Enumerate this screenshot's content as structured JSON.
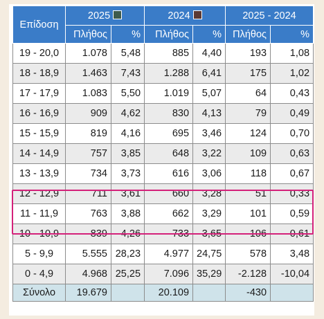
{
  "header": {
    "grade_label": "Επίδοση",
    "year_a": "2025",
    "year_b": "2024",
    "diff_label": "2025 - 2024",
    "count_label": "Πλήθος",
    "pct_label": "%",
    "year_a_color": "#3e5b4c",
    "year_b_color": "#5a3a34"
  },
  "rows": [
    {
      "range": "19 - 20,0",
      "a_count": "1.078",
      "a_pct": "5,48",
      "b_count": "885",
      "b_pct": "4,40",
      "d_count": "193",
      "d_pct": "1,08"
    },
    {
      "range": "18 - 18,9",
      "a_count": "1.463",
      "a_pct": "7,43",
      "b_count": "1.288",
      "b_pct": "6,41",
      "d_count": "175",
      "d_pct": "1,02"
    },
    {
      "range": "17 - 17,9",
      "a_count": "1.083",
      "a_pct": "5,50",
      "b_count": "1.019",
      "b_pct": "5,07",
      "d_count": "64",
      "d_pct": "0,43"
    },
    {
      "range": "16 - 16,9",
      "a_count": "909",
      "a_pct": "4,62",
      "b_count": "830",
      "b_pct": "4,13",
      "d_count": "79",
      "d_pct": "0,49"
    },
    {
      "range": "15 - 15,9",
      "a_count": "819",
      "a_pct": "4,16",
      "b_count": "695",
      "b_pct": "3,46",
      "d_count": "124",
      "d_pct": "0,70"
    },
    {
      "range": "14 - 14,9",
      "a_count": "757",
      "a_pct": "3,85",
      "b_count": "648",
      "b_pct": "3,22",
      "d_count": "109",
      "d_pct": "0,63"
    },
    {
      "range": "13 - 13,9",
      "a_count": "734",
      "a_pct": "3,73",
      "b_count": "616",
      "b_pct": "3,06",
      "d_count": "118",
      "d_pct": "0,67"
    },
    {
      "range": "12 - 12,9",
      "a_count": "711",
      "a_pct": "3,61",
      "b_count": "660",
      "b_pct": "3,28",
      "d_count": "51",
      "d_pct": "0,33"
    },
    {
      "range": "11 - 11,9",
      "a_count": "763",
      "a_pct": "3,88",
      "b_count": "662",
      "b_pct": "3,29",
      "d_count": "101",
      "d_pct": "0,59"
    },
    {
      "range": "10 - 10,9",
      "a_count": "839",
      "a_pct": "4,26",
      "b_count": "733",
      "b_pct": "3,65",
      "d_count": "106",
      "d_pct": "0,61"
    },
    {
      "range": "5 - 9,9",
      "a_count": "5.555",
      "a_pct": "28,23",
      "b_count": "4.977",
      "b_pct": "24,75",
      "d_count": "578",
      "d_pct": "3,48"
    },
    {
      "range": "0 - 4,9",
      "a_count": "4.968",
      "a_pct": "25,25",
      "b_count": "7.096",
      "b_pct": "35,29",
      "d_count": "-2.128",
      "d_pct": "-10,04"
    }
  ],
  "total": {
    "label": "Σύνολο",
    "a_count": "19.679",
    "b_count": "20.109",
    "d_count": "-430"
  },
  "highlight_color": "#d4217a"
}
